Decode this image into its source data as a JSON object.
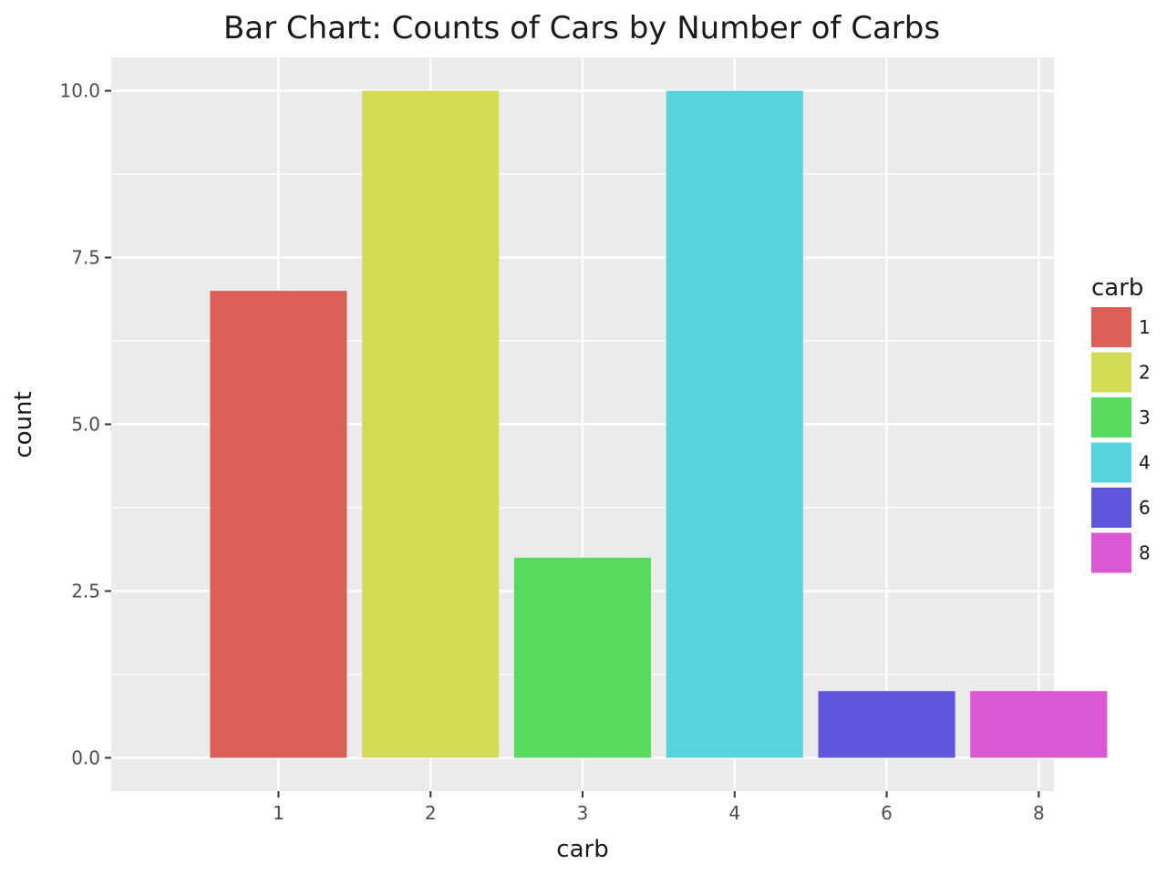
{
  "chart_data": {
    "type": "bar",
    "title": "Bar Chart: Counts of Cars by Number of Carbs",
    "xlabel": "carb",
    "ylabel": "count",
    "categories": [
      "1",
      "2",
      "3",
      "4",
      "6",
      "8"
    ],
    "values": [
      7,
      10,
      3,
      10,
      1,
      1
    ],
    "colors": [
      "#DB5F57",
      "#D3DB57",
      "#57DB5F",
      "#57D3DB",
      "#5F57DB",
      "#DB57D3"
    ],
    "ylim": [
      -0.5,
      10.5
    ],
    "yticks": [
      0,
      2.5,
      5,
      7.5,
      10
    ],
    "ytick_labels": [
      "0.0",
      "2.5",
      "5.0",
      "7.5",
      "10.0"
    ],
    "grid": true,
    "background": "#EBEBEB",
    "legend": {
      "title": "carb",
      "position": "right",
      "entries": [
        "1",
        "2",
        "3",
        "4",
        "6",
        "8"
      ]
    }
  }
}
